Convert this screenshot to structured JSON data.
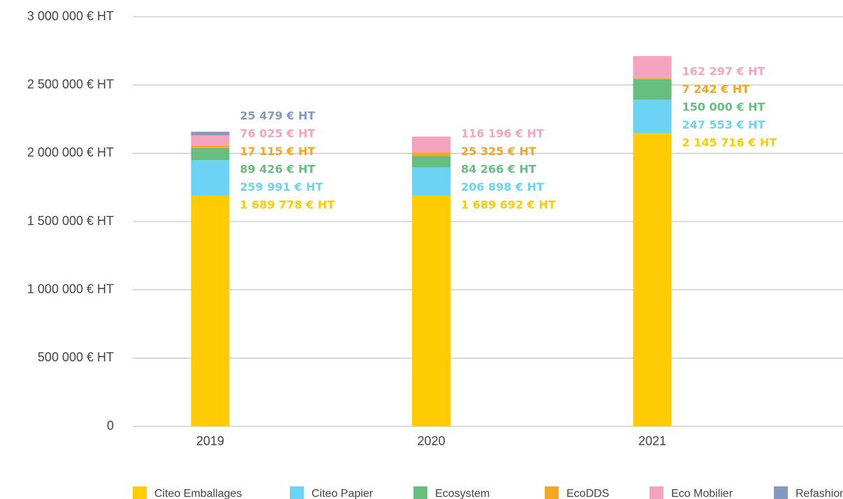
{
  "chart_data": {
    "type": "stacked_bar",
    "categories": [
      "2019",
      "2020",
      "2021"
    ],
    "series": [
      {
        "name": "Citeo Emballages",
        "color": "#FFCB05",
        "values": [
          1689778,
          1689692,
          2145716
        ],
        "value_labels": [
          "1 689 778 € HT",
          "1 689 692 € HT",
          "2 145 716 € HT"
        ]
      },
      {
        "name": "Citeo Papier",
        "color": "#6DD3F5",
        "values": [
          259991,
          206898,
          247553
        ],
        "value_labels": [
          "259 991 € HT",
          "206 898 € HT",
          "247 553 € HT"
        ]
      },
      {
        "name": "Ecosystem",
        "color": "#66BF7E",
        "values": [
          89426,
          84266,
          150000
        ],
        "value_labels": [
          "89 426 € HT",
          "84 266 € HT",
          "150 000 € HT"
        ]
      },
      {
        "name": "EcoDDS",
        "color": "#F5A623",
        "values": [
          17115,
          25325,
          7242
        ],
        "value_labels": [
          "17 115 € HT",
          "25 325 € HT",
          "7 242 € HT"
        ]
      },
      {
        "name": "Eco Mobilier",
        "color": "#F4A4BC",
        "values": [
          76025,
          116196,
          162297
        ],
        "value_labels": [
          "76 025 € HT",
          "116 196 € HT",
          "162 297 € HT"
        ]
      },
      {
        "name": "Refashion",
        "color": "#8599C0",
        "values": [
          25479,
          null,
          null
        ],
        "value_labels": [
          "25 479 € HT",
          null,
          null
        ]
      }
    ],
    "ylim": [
      0,
      3000000
    ],
    "yticks": [
      0,
      {
        "value": 500000,
        "label": "500 000 € HT"
      },
      {
        "value": 1000000,
        "label": "1 000 000 € HT"
      },
      {
        "value": 1500000,
        "label": "1 500 000 € HT"
      },
      {
        "value": 2000000,
        "label": "2 000 000 € HT"
      },
      {
        "value": 2500000,
        "label": "2 500 000 € HT"
      },
      {
        "value": 3000000,
        "label": "3 000 000 € HT"
      }
    ],
    "grid": true
  }
}
